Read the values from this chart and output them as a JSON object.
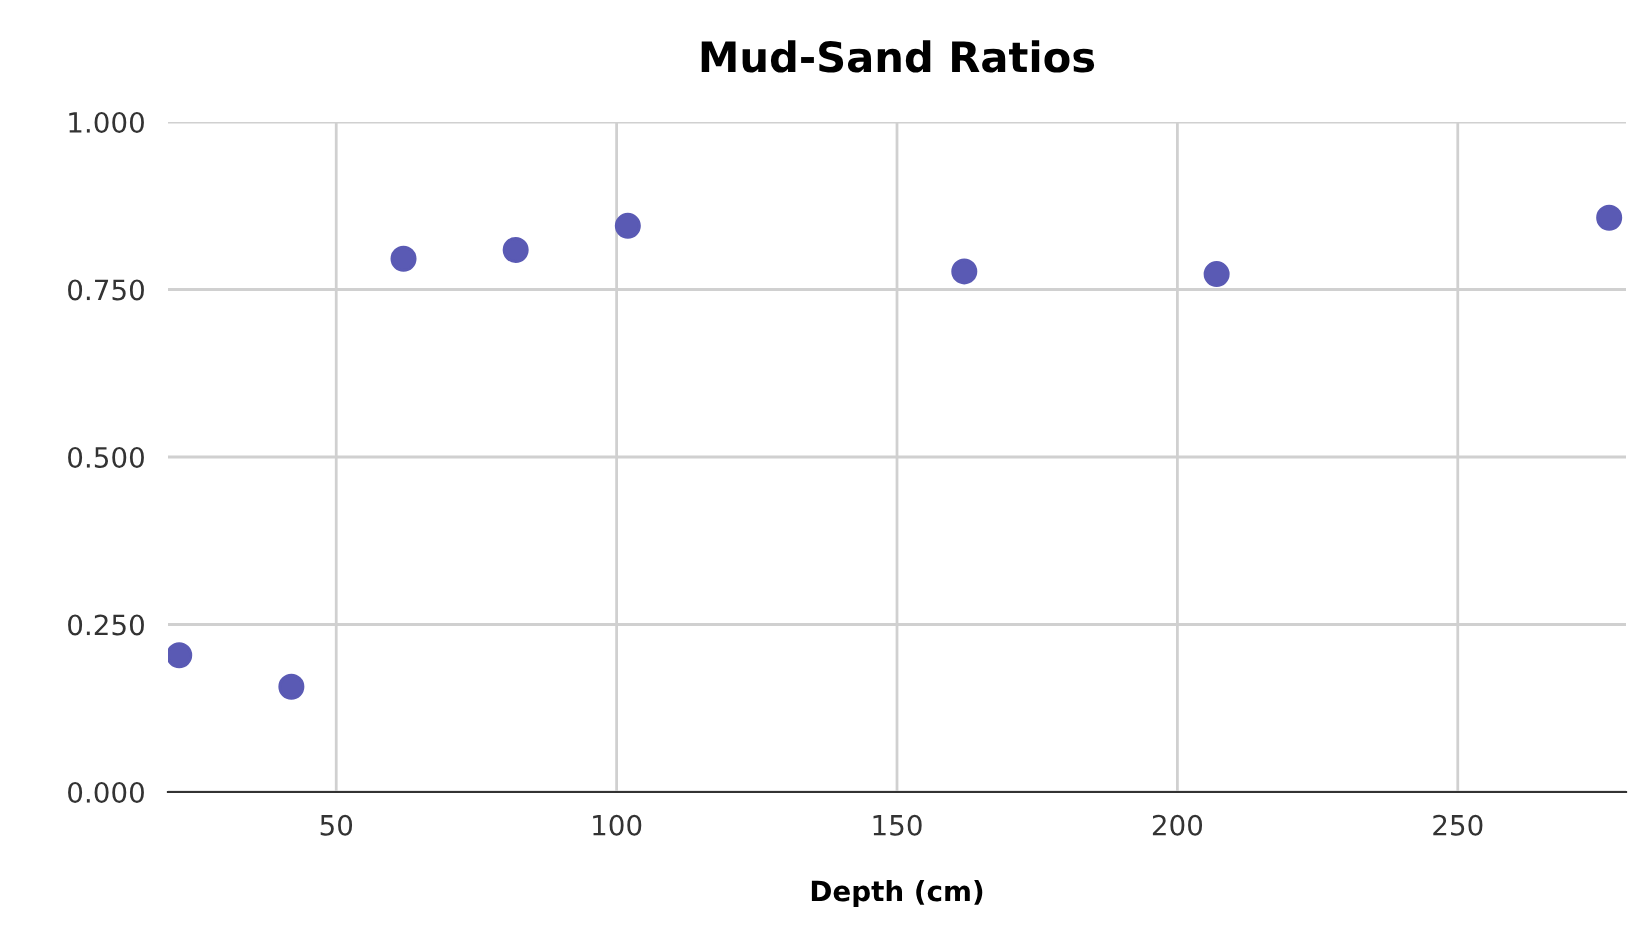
{
  "chart_data": {
    "type": "scatter",
    "title": "Mud-Sand Ratios",
    "xlabel": "Depth (cm)",
    "x": [
      22,
      42,
      62,
      82,
      102,
      162,
      207,
      277
    ],
    "series": [
      {
        "color": "#5a5ab4",
        "values": [
          0.204,
          0.157,
          0.796,
          0.809,
          0.845,
          0.777,
          0.773,
          0.857
        ]
      }
    ],
    "xlim": [
      20,
      280
    ],
    "xticks": [
      50,
      100,
      150,
      200,
      250
    ],
    "ylim": [
      0,
      1
    ],
    "yticks": [
      {
        "value": 0,
        "label": "0.000"
      },
      {
        "value": 0.25,
        "label": "0.250"
      },
      {
        "value": 0.5,
        "label": "0.500"
      },
      {
        "value": 0.75,
        "label": "0.750"
      },
      {
        "value": 1,
        "label": "1.000"
      }
    ],
    "grid": true,
    "marker": "circle"
  }
}
